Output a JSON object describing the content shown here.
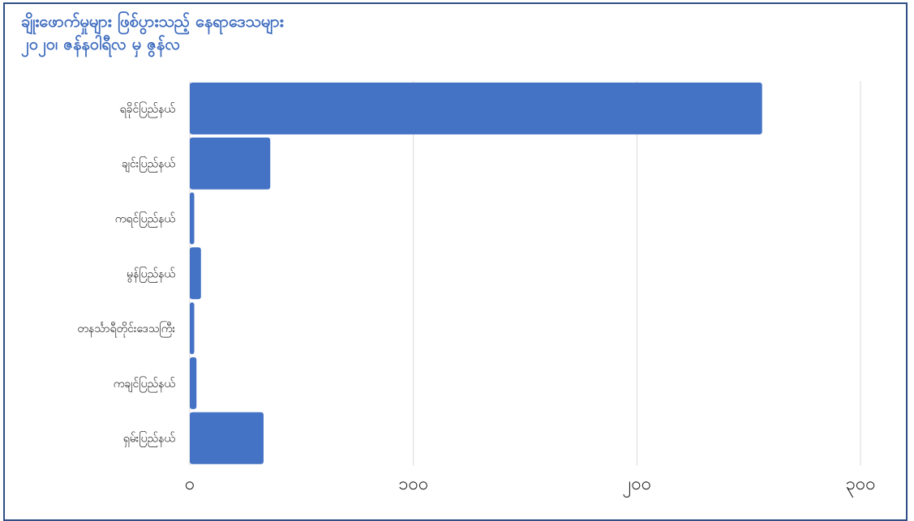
{
  "chart_data": {
    "type": "bar",
    "orientation": "horizontal",
    "title": "ချိုးဖောက်မှုများ ဖြစ်ပွားသည့် နေရာဒေသများ",
    "subtitle": "၂၀၂၀၊ ဇန်နဝါရီလ မှ ဇွန်လ",
    "categories": [
      "ရခိုင်ပြည်နယ်",
      "ချင်းပြည်နယ်",
      "ကရင်ပြည်နယ်",
      "မွန်ပြည်နယ်",
      "တနင်္သာရီတိုင်းဒေသကြီး",
      "ကချင်ပြည်နယ်",
      "ရှမ်းပြည်နယ်"
    ],
    "values": [
      256,
      36,
      2,
      5,
      2,
      3,
      33
    ],
    "xlim": [
      0,
      300
    ],
    "xticks": [
      0,
      100,
      200,
      300
    ],
    "xtick_labels": [
      "၀",
      "၁၀၀",
      "၂၀၀",
      "၃၀၀"
    ],
    "grid": "vertical",
    "bar_color": "#4472c4",
    "title_color": "#3f6dbf",
    "xlabel": "",
    "ylabel": ""
  }
}
